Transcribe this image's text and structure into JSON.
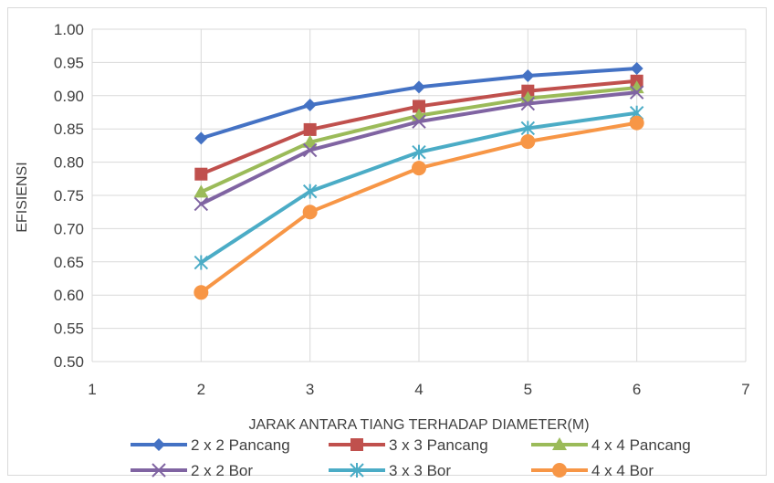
{
  "chart_data": {
    "type": "line",
    "title": "",
    "xlabel": "JARAK ANTARA TIANG TERHADAP DIAMETER(M)",
    "ylabel": "EFISIENSI",
    "xlim": [
      1,
      7
    ],
    "ylim": [
      0.5,
      1.0
    ],
    "x_ticks": [
      "1",
      "2",
      "3",
      "4",
      "5",
      "6",
      "7"
    ],
    "y_ticks": [
      "0.50",
      "0.55",
      "0.60",
      "0.65",
      "0.70",
      "0.75",
      "0.80",
      "0.85",
      "0.90",
      "0.95",
      "1.00"
    ],
    "grid": true,
    "legend_position": "bottom",
    "x": [
      2,
      3,
      4,
      5,
      6
    ],
    "series": [
      {
        "name": "2 x 2 Pancang",
        "color": "#4472c4",
        "marker": "diamond",
        "values": [
          0.836,
          0.886,
          0.913,
          0.93,
          0.941
        ]
      },
      {
        "name": "3 x 3 Pancang",
        "color": "#c0504d",
        "marker": "square",
        "values": [
          0.782,
          0.849,
          0.884,
          0.907,
          0.922
        ]
      },
      {
        "name": "4 x 4 Pancang",
        "color": "#9bbb59",
        "marker": "triangle",
        "values": [
          0.755,
          0.83,
          0.87,
          0.896,
          0.912
        ]
      },
      {
        "name": "2 x 2 Bor",
        "color": "#8064a2",
        "marker": "x",
        "values": [
          0.737,
          0.818,
          0.861,
          0.888,
          0.905
        ]
      },
      {
        "name": "3 x 3 Bor",
        "color": "#4bacc6",
        "marker": "star",
        "values": [
          0.649,
          0.756,
          0.815,
          0.851,
          0.874
        ]
      },
      {
        "name": "4 x 4 Bor",
        "color": "#f79646",
        "marker": "circle",
        "values": [
          0.604,
          0.725,
          0.791,
          0.831,
          0.859
        ]
      }
    ]
  }
}
